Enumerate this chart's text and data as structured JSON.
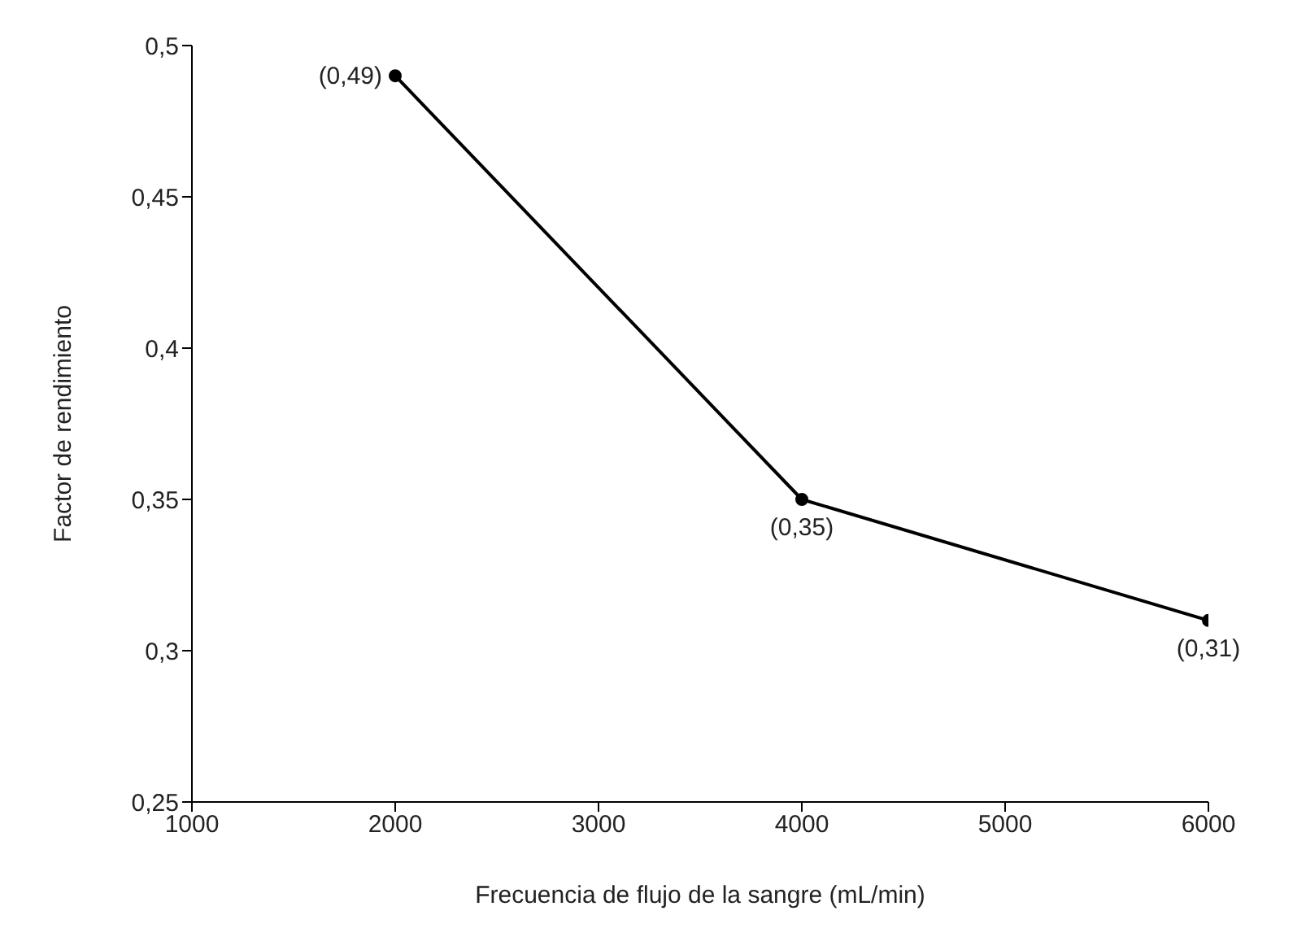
{
  "chart_data": {
    "type": "line",
    "xlabel": "Frecuencia de flujo de la sangre (mL/min)",
    "ylabel": "Factor de rendimiento",
    "x": [
      2000,
      4000,
      6000
    ],
    "series": [
      {
        "color": "#000000",
        "values": [
          0.49,
          0.35,
          0.31
        ],
        "value_labels": [
          "(0,49)",
          "(0,35)",
          "(0,31)"
        ]
      }
    ],
    "xlim": [
      1000,
      6000
    ],
    "xticks": [
      1000,
      2000,
      3000,
      4000,
      5000,
      6000
    ],
    "ylim": [
      0.25,
      0.5
    ],
    "yticks": [
      {
        "value": 0.25,
        "label": "0,25"
      },
      {
        "value": 0.3,
        "label": "0,3"
      },
      {
        "value": 0.35,
        "label": "0,35"
      },
      {
        "value": 0.4,
        "label": "0,4"
      },
      {
        "value": 0.45,
        "label": "0,45"
      },
      {
        "value": 0.5,
        "label": "0,5"
      }
    ],
    "grid": false,
    "legend": false,
    "marker": "circle",
    "line_style": "solid"
  }
}
